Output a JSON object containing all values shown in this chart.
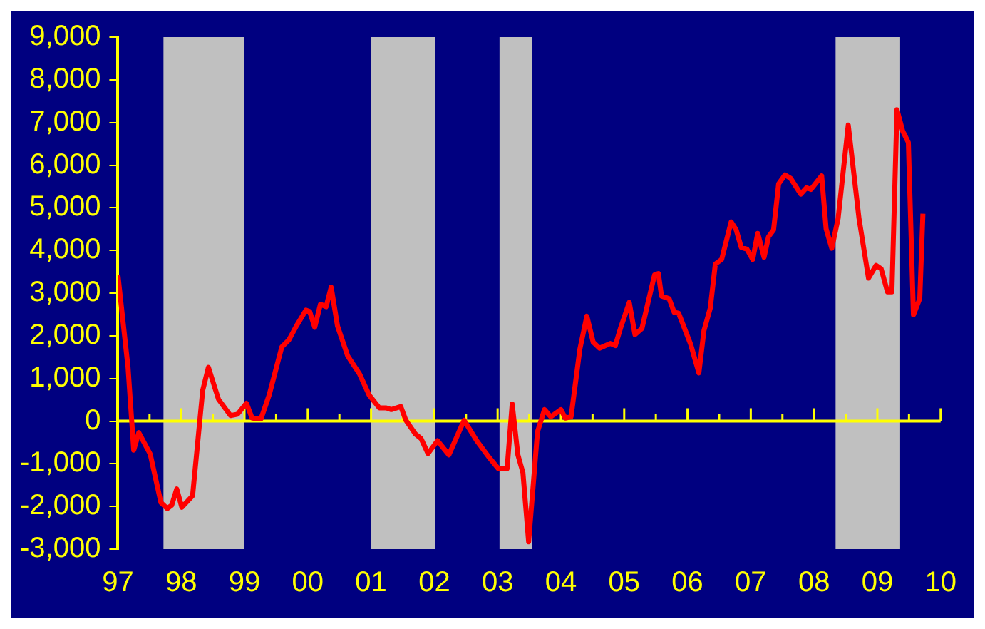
{
  "chart_data": {
    "type": "line",
    "x": [
      1997.0,
      1997.16,
      1997.25,
      1997.33,
      1997.51,
      1997.68,
      1997.78,
      1997.85,
      1997.93,
      1998.01,
      1998.18,
      1998.34,
      1998.43,
      1998.59,
      1998.78,
      1998.89,
      1999.03,
      1999.12,
      1999.26,
      1999.39,
      1999.59,
      1999.7,
      1999.82,
      1999.97,
      2000.03,
      2000.11,
      2000.2,
      2000.29,
      2000.37,
      2000.47,
      2000.63,
      2000.82,
      2000.97,
      2001.13,
      2001.24,
      2001.32,
      2001.47,
      2001.55,
      2001.7,
      2001.79,
      2001.9,
      2002.05,
      2002.23,
      2002.47,
      2002.67,
      2002.86,
      2003.01,
      2003.15,
      2003.23,
      2003.32,
      2003.4,
      2003.49,
      2003.63,
      2003.74,
      2003.84,
      2004.0,
      2004.07,
      2004.16,
      2004.3,
      2004.41,
      2004.51,
      2004.61,
      2004.78,
      2004.86,
      2004.94,
      2005.08,
      2005.17,
      2005.28,
      2005.4,
      2005.48,
      2005.54,
      2005.59,
      2005.71,
      2005.79,
      2005.86,
      2006.05,
      2006.18,
      2006.26,
      2006.36,
      2006.44,
      2006.54,
      2006.69,
      2006.77,
      2006.85,
      2006.94,
      2007.03,
      2007.11,
      2007.21,
      2007.28,
      2007.36,
      2007.44,
      2007.54,
      2007.63,
      2007.79,
      2007.88,
      2007.95,
      2008.12,
      2008.19,
      2008.28,
      2008.38,
      2008.54,
      2008.71,
      2008.86,
      2008.98,
      2009.06,
      2009.16,
      2009.23,
      2009.31,
      2009.4,
      2009.49,
      2009.57,
      2009.67,
      2009.72
    ],
    "series": [
      {
        "color": "#ff0000",
        "values": [
          3430,
          1260,
          -680,
          -270,
          -770,
          -1910,
          -2050,
          -1970,
          -1590,
          -2020,
          -1750,
          720,
          1260,
          510,
          130,
          160,
          420,
          70,
          50,
          610,
          1740,
          1900,
          2230,
          2600,
          2570,
          2200,
          2740,
          2680,
          3140,
          2230,
          1530,
          1100,
          610,
          310,
          310,
          270,
          340,
          20,
          -300,
          -410,
          -760,
          -460,
          -790,
          20,
          -460,
          -840,
          -1110,
          -1110,
          400,
          -790,
          -1210,
          -2830,
          -250,
          270,
          100,
          270,
          70,
          100,
          1690,
          2460,
          1850,
          1710,
          1820,
          1770,
          2170,
          2780,
          2030,
          2170,
          2930,
          3430,
          3460,
          2930,
          2870,
          2550,
          2530,
          1800,
          1130,
          2120,
          2650,
          3680,
          3790,
          4670,
          4480,
          4070,
          4030,
          3790,
          4400,
          3840,
          4320,
          4480,
          5560,
          5770,
          5690,
          5320,
          5470,
          5430,
          5750,
          4510,
          4050,
          4750,
          6940,
          4750,
          3350,
          3650,
          3570,
          3030,
          3030,
          7300,
          6800,
          6530,
          2490,
          2870,
          4860
        ]
      }
    ],
    "xlim": [
      1997,
      2010
    ],
    "xticks": [
      {
        "value": 1997,
        "label": "97"
      },
      {
        "value": 1997.5,
        "label": null
      },
      {
        "value": 1998,
        "label": "98"
      },
      {
        "value": 1998.5,
        "label": null
      },
      {
        "value": 1999,
        "label": "99"
      },
      {
        "value": 1999.5,
        "label": null
      },
      {
        "value": 2000,
        "label": "00"
      },
      {
        "value": 2000.5,
        "label": null
      },
      {
        "value": 2001,
        "label": "01"
      },
      {
        "value": 2001.5,
        "label": null
      },
      {
        "value": 2002,
        "label": "02"
      },
      {
        "value": 2002.5,
        "label": null
      },
      {
        "value": 2003,
        "label": "03"
      },
      {
        "value": 2003.5,
        "label": null
      },
      {
        "value": 2004,
        "label": "04"
      },
      {
        "value": 2004.5,
        "label": null
      },
      {
        "value": 2005,
        "label": "05"
      },
      {
        "value": 2005.5,
        "label": null
      },
      {
        "value": 2006,
        "label": "06"
      },
      {
        "value": 2006.5,
        "label": null
      },
      {
        "value": 2007,
        "label": "07"
      },
      {
        "value": 2007.5,
        "label": null
      },
      {
        "value": 2008,
        "label": "08"
      },
      {
        "value": 2008.5,
        "label": null
      },
      {
        "value": 2009,
        "label": "09"
      },
      {
        "value": 2009.5,
        "label": null
      },
      {
        "value": 2010,
        "label": "10"
      }
    ],
    "ylim": [
      -3000,
      9000
    ],
    "yticks": [
      {
        "value": -3000,
        "label": "-3,000"
      },
      {
        "value": -2000,
        "label": "-2,000"
      },
      {
        "value": -1000,
        "label": "-1,000"
      },
      0,
      {
        "value": 1000,
        "label": "1,000"
      },
      {
        "value": 2000,
        "label": "2,000"
      },
      {
        "value": 3000,
        "label": "3,000"
      },
      {
        "value": 4000,
        "label": "4,000"
      },
      {
        "value": 5000,
        "label": "5,000"
      },
      {
        "value": 6000,
        "label": "6,000"
      },
      {
        "value": 7000,
        "label": "7,000"
      },
      {
        "value": 8000,
        "label": "8,000"
      },
      {
        "value": 9000,
        "label": "9,000"
      }
    ],
    "bands": [
      {
        "axis": "x",
        "from": 1997.72,
        "to": 1998.99,
        "color": "#c0c0c0"
      },
      {
        "axis": "x",
        "from": 2001.0,
        "to": 2002.01,
        "color": "#c0c0c0"
      },
      {
        "axis": "x",
        "from": 2003.03,
        "to": 2003.54,
        "color": "#c0c0c0"
      },
      {
        "axis": "x",
        "from": 2008.34,
        "to": 2009.36,
        "color": "#c0c0c0"
      }
    ],
    "ref_lines": [
      {
        "axis": "y",
        "value": 0,
        "color": "#ffff00",
        "line_style": "solid"
      }
    ],
    "legend": false,
    "marker": "none",
    "line_style": "solid"
  }
}
